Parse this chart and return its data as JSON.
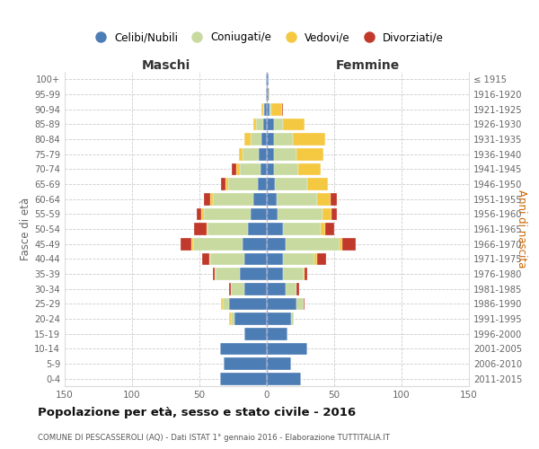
{
  "age_groups_bottom_to_top": [
    "0-4",
    "5-9",
    "10-14",
    "15-19",
    "20-24",
    "25-29",
    "30-34",
    "35-39",
    "40-44",
    "45-49",
    "50-54",
    "55-59",
    "60-64",
    "65-69",
    "70-74",
    "75-79",
    "80-84",
    "85-89",
    "90-94",
    "95-99",
    "100+"
  ],
  "birth_years_bottom_to_top": [
    "2011-2015",
    "2006-2010",
    "2001-2005",
    "1996-2000",
    "1991-1995",
    "1986-1990",
    "1981-1985",
    "1976-1980",
    "1971-1975",
    "1966-1970",
    "1961-1965",
    "1956-1960",
    "1951-1955",
    "1946-1950",
    "1941-1945",
    "1936-1940",
    "1931-1935",
    "1926-1930",
    "1921-1925",
    "1916-1920",
    "≤ 1915"
  ],
  "maschi_celibi": [
    35,
    32,
    35,
    17,
    24,
    28,
    17,
    20,
    17,
    18,
    14,
    12,
    10,
    7,
    5,
    6,
    4,
    3,
    2,
    1,
    1
  ],
  "maschi_coniugati": [
    0,
    0,
    0,
    0,
    3,
    5,
    10,
    18,
    25,
    37,
    30,
    35,
    30,
    22,
    15,
    12,
    8,
    5,
    1,
    0,
    0
  ],
  "maschi_vedovi": [
    0,
    0,
    0,
    0,
    1,
    1,
    0,
    1,
    1,
    1,
    1,
    2,
    2,
    2,
    3,
    3,
    5,
    2,
    1,
    0,
    0
  ],
  "maschi_divorziati": [
    0,
    0,
    0,
    0,
    0,
    0,
    1,
    1,
    5,
    8,
    9,
    3,
    5,
    3,
    3,
    0,
    0,
    0,
    0,
    0,
    0
  ],
  "femmine_nubili": [
    25,
    18,
    30,
    15,
    18,
    22,
    14,
    12,
    12,
    14,
    12,
    8,
    7,
    6,
    5,
    5,
    5,
    5,
    2,
    1,
    1
  ],
  "femmine_coniugate": [
    0,
    0,
    0,
    0,
    2,
    5,
    8,
    15,
    23,
    40,
    28,
    33,
    30,
    24,
    18,
    17,
    14,
    7,
    1,
    0,
    0
  ],
  "femmine_vedove": [
    0,
    0,
    0,
    0,
    0,
    0,
    0,
    1,
    2,
    2,
    3,
    7,
    10,
    15,
    17,
    20,
    24,
    16,
    8,
    1,
    0
  ],
  "femmine_divorziate": [
    0,
    0,
    0,
    0,
    0,
    1,
    2,
    2,
    7,
    10,
    7,
    4,
    5,
    0,
    0,
    0,
    0,
    0,
    1,
    0,
    0
  ],
  "color_celibi": "#4d7db5",
  "color_coniugati": "#c8daa0",
  "color_vedovi": "#f5c842",
  "color_divorziati": "#c0392b",
  "title": "Popolazione per età, sesso e stato civile - 2016",
  "subtitle": "COMUNE DI PESCASSEROLI (AQ) - Dati ISTAT 1° gennaio 2016 - Elaborazione TUTTITALIA.IT",
  "legend_labels": [
    "Celibi/Nubili",
    "Coniugati/e",
    "Vedovi/e",
    "Divorziati/e"
  ],
  "xlim": 150
}
